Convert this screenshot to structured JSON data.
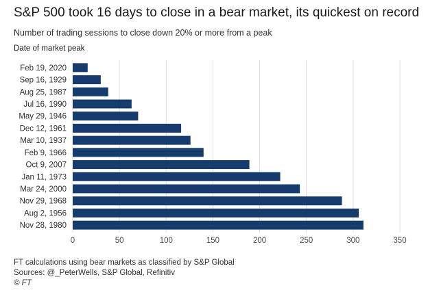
{
  "chart_data": {
    "type": "bar",
    "orientation": "horizontal",
    "title": "S&P 500 took 16 days to close in a bear market, its quickest on record",
    "subtitle": "Number of trading sessions to close down 20% or more from a peak",
    "ylabel": "Date of market peak",
    "categories": [
      "Feb 19, 2020",
      "Sep 16, 1929",
      "Aug 25, 1987",
      "Jul 16, 1990",
      "May 29, 1946",
      "Dec 12, 1961",
      "Mar 10, 1937",
      "Feb 9, 1966",
      "Oct 9, 2007",
      "Jan 11, 1973",
      "Mar 24, 2000",
      "Nov 29, 1968",
      "Aug 2, 1956",
      "Nov 28, 1980"
    ],
    "values": [
      16,
      30,
      38,
      63,
      70,
      116,
      126,
      140,
      189,
      222,
      243,
      288,
      306,
      311
    ],
    "xticks": [
      0,
      50,
      100,
      150,
      200,
      250,
      300,
      350
    ],
    "xlim": [
      0,
      350
    ],
    "grid": true,
    "bar_color": "#163c6e",
    "grid_color": "#e3ddd7"
  },
  "footer": {
    "note": "FT calculations using bear markets as classified by S&P Global",
    "sources": "Sources: @_PeterWells, S&P Global, Refinitiv",
    "brand": "© FT"
  }
}
